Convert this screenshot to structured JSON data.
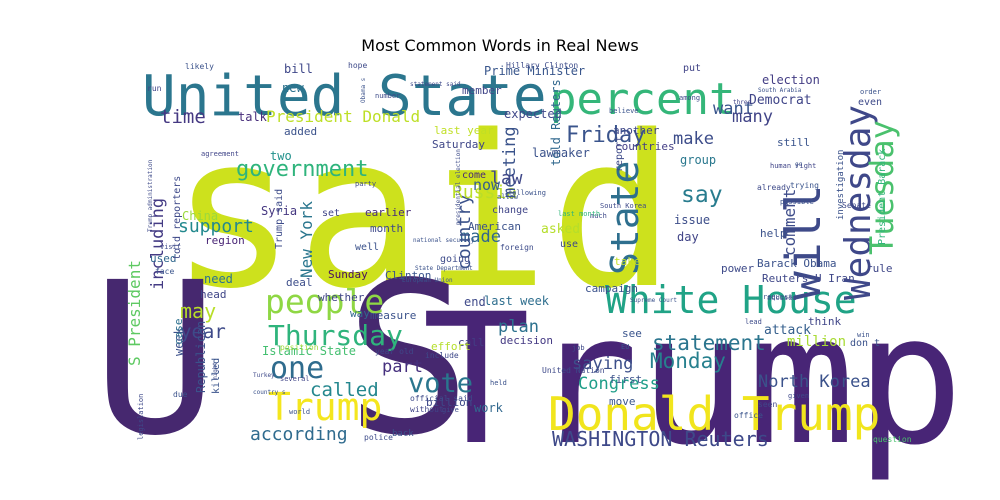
{
  "chart_data": {
    "type": "wordcloud",
    "title": "Most Common Words in Real News",
    "words": [
      {
        "text": "said",
        "color": "#cde11d"
      },
      {
        "text": "U S",
        "color": "#46286f"
      },
      {
        "text": "Trump s",
        "color": "#482576"
      },
      {
        "text": "United State",
        "color": "#2b768e"
      },
      {
        "text": "percent",
        "color": "#34b679"
      },
      {
        "text": "White House",
        "color": "#20a386"
      },
      {
        "text": "Donald Trump",
        "color": "#f1e51d"
      },
      {
        "text": "people",
        "color": "#8fd744"
      },
      {
        "text": "Wednesday",
        "color": "#3f4889"
      },
      {
        "text": "will",
        "color": "#3e4a89"
      },
      {
        "text": "State",
        "color": "#2e6f8e"
      },
      {
        "text": "one",
        "color": "#2f6c8e"
      },
      {
        "text": "Thursday",
        "color": "#2fb47c"
      },
      {
        "text": "Trump",
        "color": "#f4e61e"
      },
      {
        "text": "Tuesday",
        "color": "#4ac16d"
      },
      {
        "text": "vote",
        "color": "#2a768e"
      },
      {
        "text": "government",
        "color": "#2fb47c"
      },
      {
        "text": "Friday",
        "color": "#3a548c"
      },
      {
        "text": "WASHINGTON Reuters",
        "color": "#3e4989"
      },
      {
        "text": "Monday",
        "color": "#27808e"
      },
      {
        "text": "statement",
        "color": "#2b758e"
      },
      {
        "text": "say",
        "color": "#287c8e"
      },
      {
        "text": "including",
        "color": "#443b84"
      },
      {
        "text": "support",
        "color": "#23898e"
      },
      {
        "text": "according",
        "color": "#2f6b8e"
      },
      {
        "text": "made",
        "color": "#31678e"
      },
      {
        "text": "country",
        "color": "#3b528b"
      },
      {
        "text": "called",
        "color": "#24878e"
      },
      {
        "text": "North Korea",
        "color": "#3b528b"
      },
      {
        "text": "year",
        "color": "#3e4a89"
      },
      {
        "text": "may",
        "color": "#b8de29"
      },
      {
        "text": "time",
        "color": "#453882"
      },
      {
        "text": "Russia",
        "color": "#bade28"
      },
      {
        "text": "Congress",
        "color": "#1f9e89"
      },
      {
        "text": "want",
        "color": "#39558c"
      },
      {
        "text": "make",
        "color": "#3d4d8a"
      },
      {
        "text": "many",
        "color": "#414487"
      },
      {
        "text": "meeting",
        "color": "#3a538b"
      },
      {
        "text": "comment",
        "color": "#3e4c8a"
      },
      {
        "text": "plan",
        "color": "#2c718e"
      },
      {
        "text": "saying",
        "color": "#3c4f8a"
      },
      {
        "text": "part",
        "color": "#46307e"
      },
      {
        "text": "law",
        "color": "#3f4788"
      },
      {
        "text": "New York",
        "color": "#2a768e"
      },
      {
        "text": "President Donald",
        "color": "#bddf26"
      },
      {
        "text": "Prime Minister",
        "color": "#39568c"
      },
      {
        "text": "S President",
        "color": "#5ec962"
      },
      {
        "text": "now",
        "color": "#355f8d"
      },
      {
        "text": "Barack Obama",
        "color": "#3b528b"
      },
      {
        "text": "Reuters U Iran",
        "color": "#3f4788"
      },
      {
        "text": "million",
        "color": "#a8db34"
      },
      {
        "text": "talk",
        "color": "#472d7b"
      },
      {
        "text": "bill",
        "color": "#3f4889"
      },
      {
        "text": "new",
        "color": "#2c728e"
      },
      {
        "text": "Democrat",
        "color": "#404588"
      },
      {
        "text": "election",
        "color": "#433d84"
      },
      {
        "text": "expected",
        "color": "#3f4889"
      },
      {
        "text": "group",
        "color": "#2a788e"
      },
      {
        "text": "told Reuters",
        "color": "#31688e"
      },
      {
        "text": "lawmaker",
        "color": "#3b528b"
      },
      {
        "text": "asked",
        "color": "#b5de2b"
      },
      {
        "text": "issue",
        "color": "#3d4e8a"
      },
      {
        "text": "day",
        "color": "#414487"
      },
      {
        "text": "attack",
        "color": "#355f8d"
      },
      {
        "text": "Islamic State",
        "color": "#44bf70"
      },
      {
        "text": "Republican",
        "color": "#3b528b"
      },
      {
        "text": "Syria",
        "color": "#453781"
      },
      {
        "text": "China",
        "color": "#9bd93c"
      },
      {
        "text": "deal",
        "color": "#3d4e8a"
      },
      {
        "text": "week",
        "color": "#3c508b"
      },
      {
        "text": "case",
        "color": "#2d708e"
      },
      {
        "text": "need",
        "color": "#2c728e"
      },
      {
        "text": "head",
        "color": "#404688"
      },
      {
        "text": "region",
        "color": "#482475"
      },
      {
        "text": "used",
        "color": "#31688e"
      },
      {
        "text": "Clinton",
        "color": "#3a548c"
      },
      {
        "text": "Sunday",
        "color": "#470d60"
      },
      {
        "text": "earlier",
        "color": "#472c7a"
      },
      {
        "text": "month",
        "color": "#3e4989"
      },
      {
        "text": "last week",
        "color": "#2e6e8e"
      },
      {
        "text": "last year",
        "color": "#c0df25"
      },
      {
        "text": "Saturday",
        "color": "#3f4788"
      },
      {
        "text": "end",
        "color": "#3e4989"
      },
      {
        "text": "measure",
        "color": "#3b528b"
      },
      {
        "text": "way",
        "color": "#31688e"
      },
      {
        "text": "whether",
        "color": "#404588"
      },
      {
        "text": "decision",
        "color": "#443983"
      },
      {
        "text": "call",
        "color": "#423f85"
      },
      {
        "text": "effort",
        "color": "#b5de2b"
      },
      {
        "text": "billion",
        "color": "#3e4989"
      },
      {
        "text": "work",
        "color": "#31688e"
      },
      {
        "text": "move",
        "color": "#39568c"
      },
      {
        "text": "first",
        "color": "#3b528b"
      },
      {
        "text": "rule",
        "color": "#3f4788"
      },
      {
        "text": "think",
        "color": "#404688"
      },
      {
        "text": "power",
        "color": "#3e4a89"
      },
      {
        "text": "campaign",
        "color": "#3b528b"
      },
      {
        "text": "see",
        "color": "#3a548c"
      },
      {
        "text": "help",
        "color": "#3b528b"
      },
      {
        "text": "take",
        "color": "#c2df23"
      },
      {
        "text": "going",
        "color": "#3e4c8a"
      },
      {
        "text": "change",
        "color": "#404588"
      },
      {
        "text": "American",
        "color": "#3b528b"
      },
      {
        "text": "use",
        "color": "#3e4989"
      },
      {
        "text": "come",
        "color": "#482878"
      },
      {
        "text": "another",
        "color": "#3f4889"
      },
      {
        "text": "countries",
        "color": "#433e85"
      },
      {
        "text": "report",
        "color": "#3e4a89"
      },
      {
        "text": "still",
        "color": "#3a548c"
      },
      {
        "text": "investigation",
        "color": "#3b528b"
      },
      {
        "text": "President Barack",
        "color": "#31b57b"
      },
      {
        "text": "even",
        "color": "#3e4a89"
      },
      {
        "text": "member",
        "color": "#404588"
      },
      {
        "text": "put",
        "color": "#414487"
      },
      {
        "text": "added",
        "color": "#3b528b"
      },
      {
        "text": "two",
        "color": "#21918c"
      },
      {
        "text": "Trump said",
        "color": "#3e4c8a"
      },
      {
        "text": "told reporters",
        "color": "#3e4989"
      },
      {
        "text": "set",
        "color": "#404588"
      },
      {
        "text": "well",
        "color": "#3b528b"
      },
      {
        "text": "killed",
        "color": "#3a548c"
      },
      {
        "text": "don t",
        "color": "#3b528b"
      },
      {
        "text": "position",
        "color": "#9fda3a"
      },
      {
        "text": "include",
        "color": "#3e4989"
      },
      {
        "text": "year old",
        "color": "#3f4788"
      },
      {
        "text": "official said",
        "color": "#3e4a89"
      },
      {
        "text": "without",
        "color": "#404588"
      },
      {
        "text": "back",
        "color": "#3b528b"
      },
      {
        "text": "police",
        "color": "#3e4c8a"
      },
      {
        "text": "legislation",
        "color": "#3e4989"
      },
      {
        "text": "question",
        "color": "#4ac16d"
      },
      {
        "text": "office",
        "color": "#3a548c"
      },
      {
        "text": "United Nation",
        "color": "#3e4989"
      },
      {
        "text": "hope",
        "color": "#3e4a89"
      },
      {
        "text": "likely",
        "color": "#3b528b"
      },
      {
        "text": "run",
        "color": "#404588"
      },
      {
        "text": "Hillary Clinton",
        "color": "#3e4c8a"
      },
      {
        "text": "Obama s",
        "color": "#3b528b"
      },
      {
        "text": "Senate",
        "color": "#3e4989"
      },
      {
        "text": "trying",
        "color": "#3a548c"
      },
      {
        "text": "possible",
        "color": "#3b528b"
      },
      {
        "text": "already",
        "color": "#3e4a89"
      },
      {
        "text": "human right",
        "color": "#404588"
      },
      {
        "text": "allow",
        "color": "#3b528b"
      },
      {
        "text": "much",
        "color": "#3e4989"
      },
      {
        "text": "last month",
        "color": "#31b57b"
      },
      {
        "text": "visit",
        "color": "#3e4c8a"
      },
      {
        "text": "face",
        "color": "#3a548c"
      },
      {
        "text": "due",
        "color": "#3b528b"
      },
      {
        "text": "given",
        "color": "#3e4989"
      },
      {
        "text": "seen",
        "color": "#404588"
      },
      {
        "text": "request",
        "color": "#3b528b"
      },
      {
        "text": "accused",
        "color": "#3e4a89"
      },
      {
        "text": "lead",
        "color": "#3e4c8a"
      },
      {
        "text": "win",
        "color": "#3b528b"
      },
      {
        "text": "EU",
        "color": "#3a548c"
      },
      {
        "text": "job",
        "color": "#3e4989"
      },
      {
        "text": "held",
        "color": "#3b528b"
      },
      {
        "text": "give",
        "color": "#3e4c8a"
      },
      {
        "text": "several",
        "color": "#404588"
      },
      {
        "text": "world",
        "color": "#3b528b"
      },
      {
        "text": "among",
        "color": "#3e4989"
      },
      {
        "text": "believe",
        "color": "#3a548c"
      },
      {
        "text": "order",
        "color": "#3b528b"
      },
      {
        "text": "number",
        "color": "#3e4c8a"
      },
      {
        "text": "party",
        "color": "#3e4989"
      },
      {
        "text": "following",
        "color": "#3b528b"
      },
      {
        "text": "agreement",
        "color": "#404588"
      },
      {
        "text": "Trump administration",
        "color": "#3e4a89"
      },
      {
        "text": "State Department",
        "color": "#3b528b"
      },
      {
        "text": "South Korea",
        "color": "#3e4989"
      },
      {
        "text": "European Union",
        "color": "#3a548c"
      },
      {
        "text": "South Arabia",
        "color": "#3b528b"
      },
      {
        "text": "three",
        "color": "#404588"
      },
      {
        "text": "presidential election",
        "color": "#3e4c8a"
      },
      {
        "text": "national security",
        "color": "#3b528b"
      },
      {
        "text": "Turkey",
        "color": "#3e4989"
      },
      {
        "text": "country s",
        "color": "#3b528b"
      },
      {
        "text": "might",
        "color": "#3e4a89"
      },
      {
        "text": "Supreme Court",
        "color": "#3b528b"
      },
      {
        "text": "statement said",
        "color": "#3e4989"
      },
      {
        "text": "go",
        "color": "#3b528b"
      },
      {
        "text": "foreign",
        "color": "#3e4c8a"
      }
    ]
  }
}
